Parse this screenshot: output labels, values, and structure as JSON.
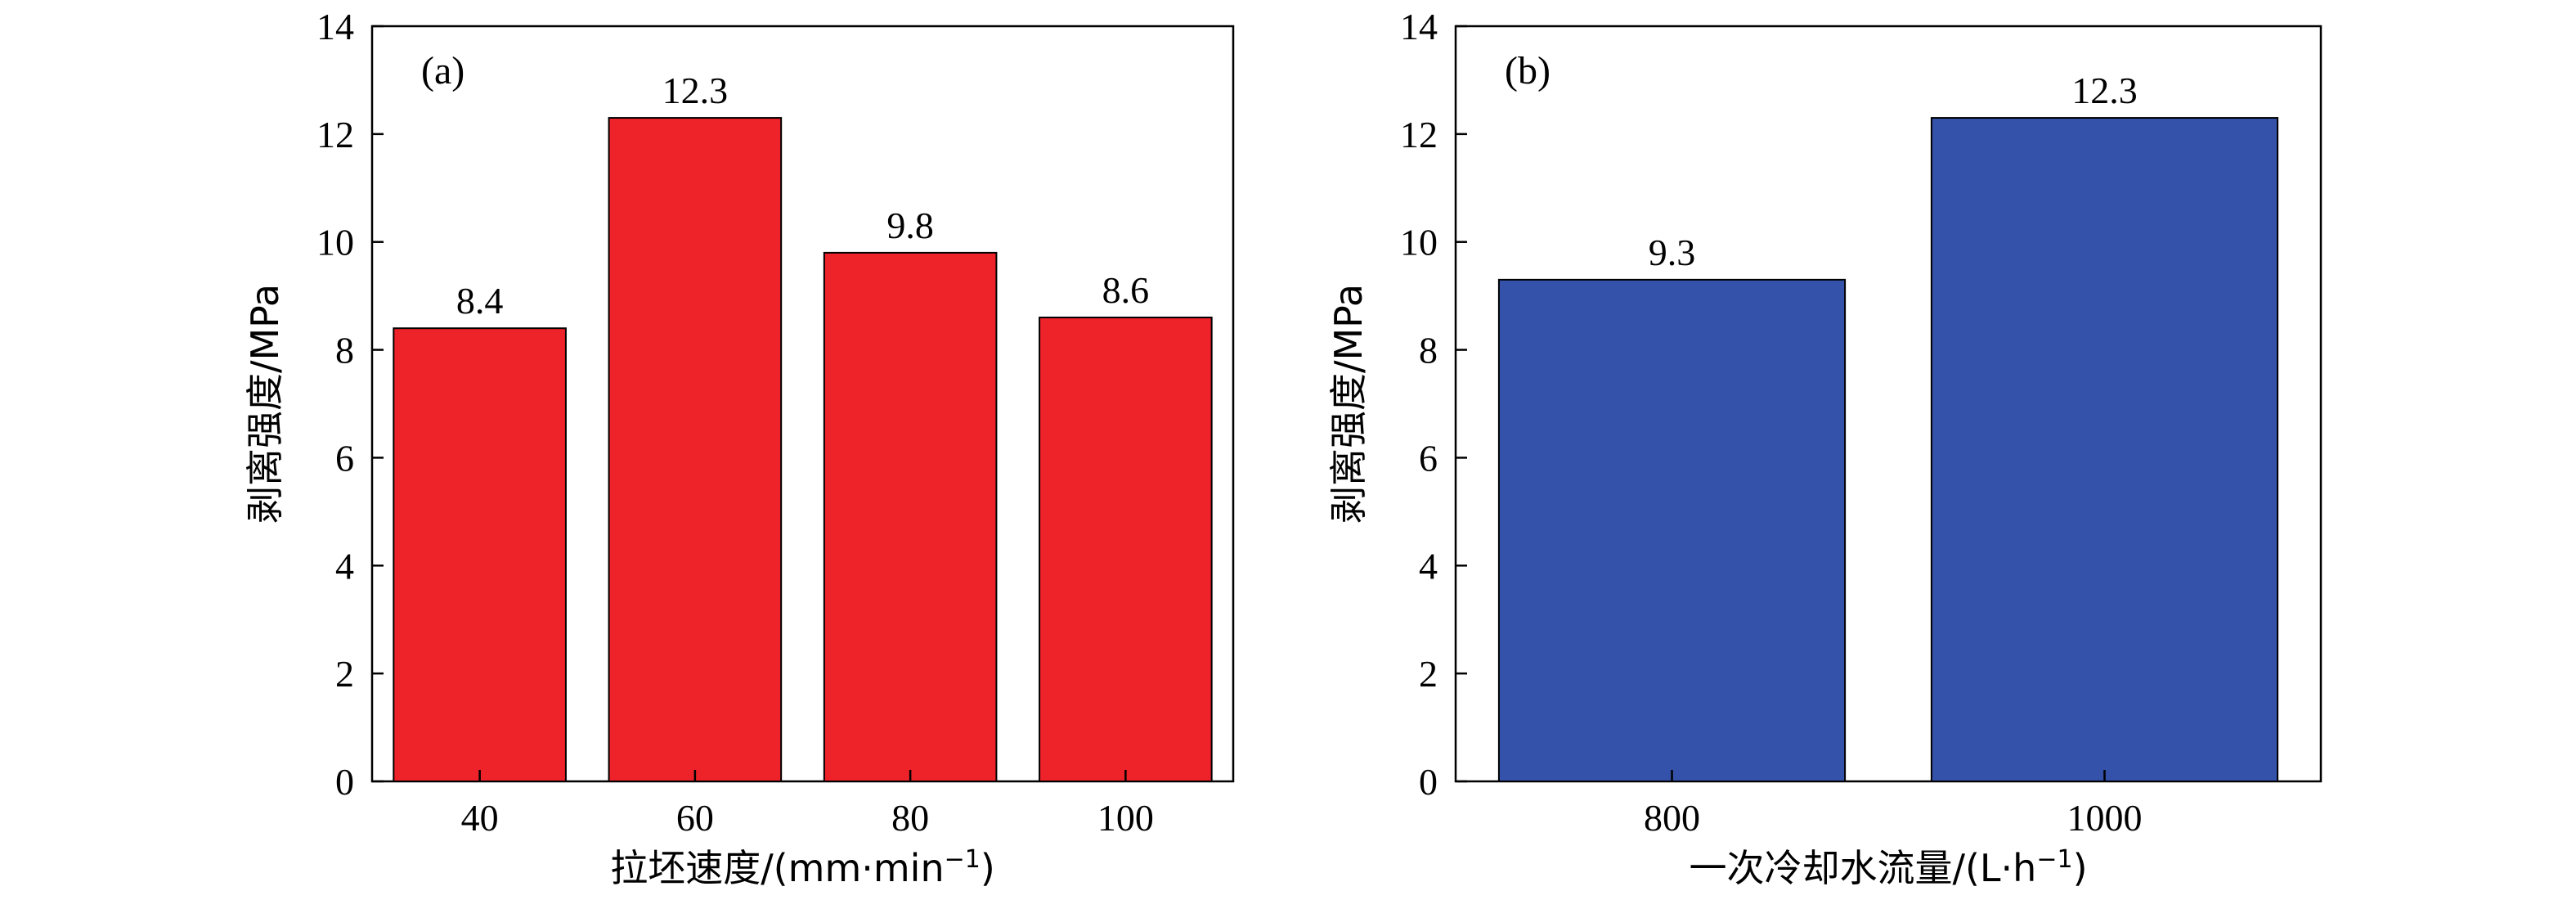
{
  "chart_data": [
    {
      "type": "bar",
      "panel_label": "(a)",
      "categories": [
        "40",
        "60",
        "80",
        "100"
      ],
      "values": [
        8.4,
        12.3,
        9.8,
        8.6
      ],
      "value_labels": [
        "8.4",
        "12.3",
        "9.8",
        "8.6"
      ],
      "xlabel_main": "拉坯速度/(mm·min",
      "xlabel_sup": "−1",
      "xlabel_close": ")",
      "ylabel": "剥离强度/MPa",
      "ylim": [
        0,
        14
      ],
      "yticks": [
        "0",
        "2",
        "4",
        "6",
        "8",
        "10",
        "12",
        "14"
      ],
      "bar_color": "#ee2229",
      "grid": false
    },
    {
      "type": "bar",
      "panel_label": "(b)",
      "categories": [
        "800",
        "1000"
      ],
      "values": [
        9.3,
        12.3
      ],
      "value_labels": [
        "9.3",
        "12.3"
      ],
      "xlabel_main": "一次冷却水流量/(L·h",
      "xlabel_sup": "−1",
      "xlabel_close": ")",
      "ylabel": "剥离强度/MPa",
      "ylim": [
        0,
        14
      ],
      "yticks": [
        "0",
        "2",
        "4",
        "6",
        "8",
        "10",
        "12",
        "14"
      ],
      "bar_color": "#3452aa",
      "grid": false
    }
  ]
}
